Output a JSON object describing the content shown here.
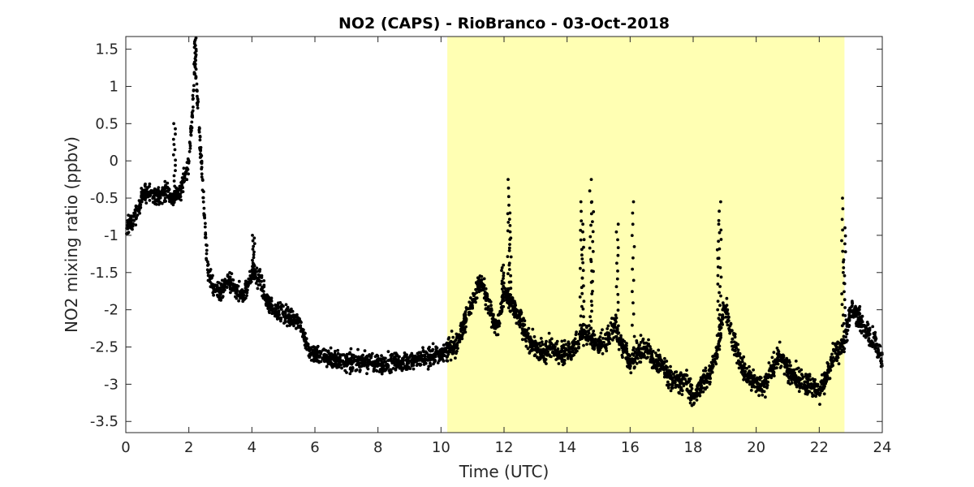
{
  "chart_data": {
    "type": "scatter",
    "title": "NO2 (CAPS) - RioBranco - 03-Oct-2018",
    "xlabel": "Time (UTC)",
    "ylabel": "NO2 mixing ratio (ppbv)",
    "xlim": [
      0,
      24
    ],
    "ylim": [
      -3.65,
      1.67
    ],
    "xticks": [
      0,
      2,
      4,
      6,
      8,
      10,
      12,
      14,
      16,
      18,
      20,
      22,
      24
    ],
    "xtick_labels": [
      "0",
      "2",
      "4",
      "6",
      "8",
      "10",
      "12",
      "14",
      "16",
      "18",
      "20",
      "22",
      "24"
    ],
    "yticks": [
      1.5,
      1,
      0.5,
      0,
      -0.5,
      -1,
      -1.5,
      -2,
      -2.5,
      -3,
      -3.5
    ],
    "ytick_labels": [
      "1.5",
      "1",
      "0.5",
      "0",
      "-0.5",
      "-1",
      "-1.5",
      "-2",
      "-2.5",
      "-3",
      "-3.5"
    ],
    "grid": false,
    "highlight_band": {
      "x_start": 10.2,
      "x_end": 22.8,
      "color": "#ffffb3"
    },
    "marker_color": "#000000",
    "series": [
      {
        "points_x": [
          0.0,
          0.25,
          0.5,
          0.75,
          1.0,
          1.25,
          1.5,
          1.75,
          2.0,
          2.1,
          2.2,
          2.3,
          2.4,
          2.5,
          2.6,
          2.8,
          3.0,
          3.25,
          3.5,
          3.75,
          4.0,
          4.25,
          4.5,
          4.75,
          5.0,
          5.25,
          5.5,
          5.75,
          6.0,
          6.5,
          7.0,
          7.5,
          8.0,
          8.5,
          9.0,
          9.5,
          10.0,
          10.5,
          11.0,
          11.25,
          11.5,
          11.75,
          12.0,
          12.25,
          12.5,
          12.75,
          13.0,
          13.25,
          13.5,
          13.75,
          14.0,
          14.25,
          14.5,
          14.75,
          15.0,
          15.25,
          15.5,
          15.75,
          16.0,
          16.25,
          16.5,
          16.75,
          17.0,
          17.25,
          17.5,
          17.75,
          18.0,
          18.25,
          18.5,
          18.75,
          19.0,
          19.25,
          19.5,
          19.75,
          20.0,
          20.25,
          20.5,
          20.75,
          21.0,
          21.25,
          21.5,
          21.75,
          22.0,
          22.25,
          22.5,
          22.75,
          23.0,
          23.25,
          23.5,
          23.75,
          24.0
        ],
        "points_y": [
          -0.9,
          -0.8,
          -0.5,
          -0.4,
          -0.5,
          -0.4,
          -0.5,
          -0.4,
          0.0,
          0.6,
          1.3,
          0.6,
          0.0,
          -0.8,
          -1.5,
          -1.7,
          -1.8,
          -1.6,
          -1.75,
          -1.8,
          -1.5,
          -1.6,
          -1.9,
          -2.0,
          -2.05,
          -2.1,
          -2.15,
          -2.5,
          -2.6,
          -2.65,
          -2.7,
          -2.7,
          -2.72,
          -2.7,
          -2.7,
          -2.65,
          -2.6,
          -2.45,
          -1.9,
          -1.6,
          -1.9,
          -2.3,
          -1.8,
          -1.9,
          -2.1,
          -2.4,
          -2.5,
          -2.6,
          -2.5,
          -2.6,
          -2.55,
          -2.5,
          -2.3,
          -2.4,
          -2.5,
          -2.4,
          -2.2,
          -2.5,
          -2.7,
          -2.6,
          -2.5,
          -2.7,
          -2.7,
          -2.9,
          -3.0,
          -2.9,
          -3.2,
          -3.0,
          -2.9,
          -2.6,
          -1.9,
          -2.4,
          -2.7,
          -2.9,
          -3.0,
          -3.0,
          -2.8,
          -2.6,
          -2.8,
          -2.9,
          -3.0,
          -3.0,
          -3.1,
          -2.9,
          -2.6,
          -2.5,
          -2.0,
          -2.1,
          -2.3,
          -2.4,
          -2.7
        ]
      }
    ],
    "spikes": [
      {
        "x": 1.55,
        "y": 0.5
      },
      {
        "x": 2.2,
        "y": 1.65
      },
      {
        "x": 4.05,
        "y": -1.0
      },
      {
        "x": 11.95,
        "y": -1.4
      },
      {
        "x": 12.15,
        "y": -0.25
      },
      {
        "x": 12.2,
        "y": -0.7
      },
      {
        "x": 14.75,
        "y": -0.25
      },
      {
        "x": 14.8,
        "y": -0.55
      },
      {
        "x": 14.45,
        "y": -0.55
      },
      {
        "x": 14.5,
        "y": -0.85
      },
      {
        "x": 15.6,
        "y": -0.85
      },
      {
        "x": 16.1,
        "y": -0.55
      },
      {
        "x": 18.85,
        "y": -0.55
      },
      {
        "x": 18.8,
        "y": -0.85
      },
      {
        "x": 22.75,
        "y": -0.5
      },
      {
        "x": 22.8,
        "y": -0.9
      }
    ]
  }
}
